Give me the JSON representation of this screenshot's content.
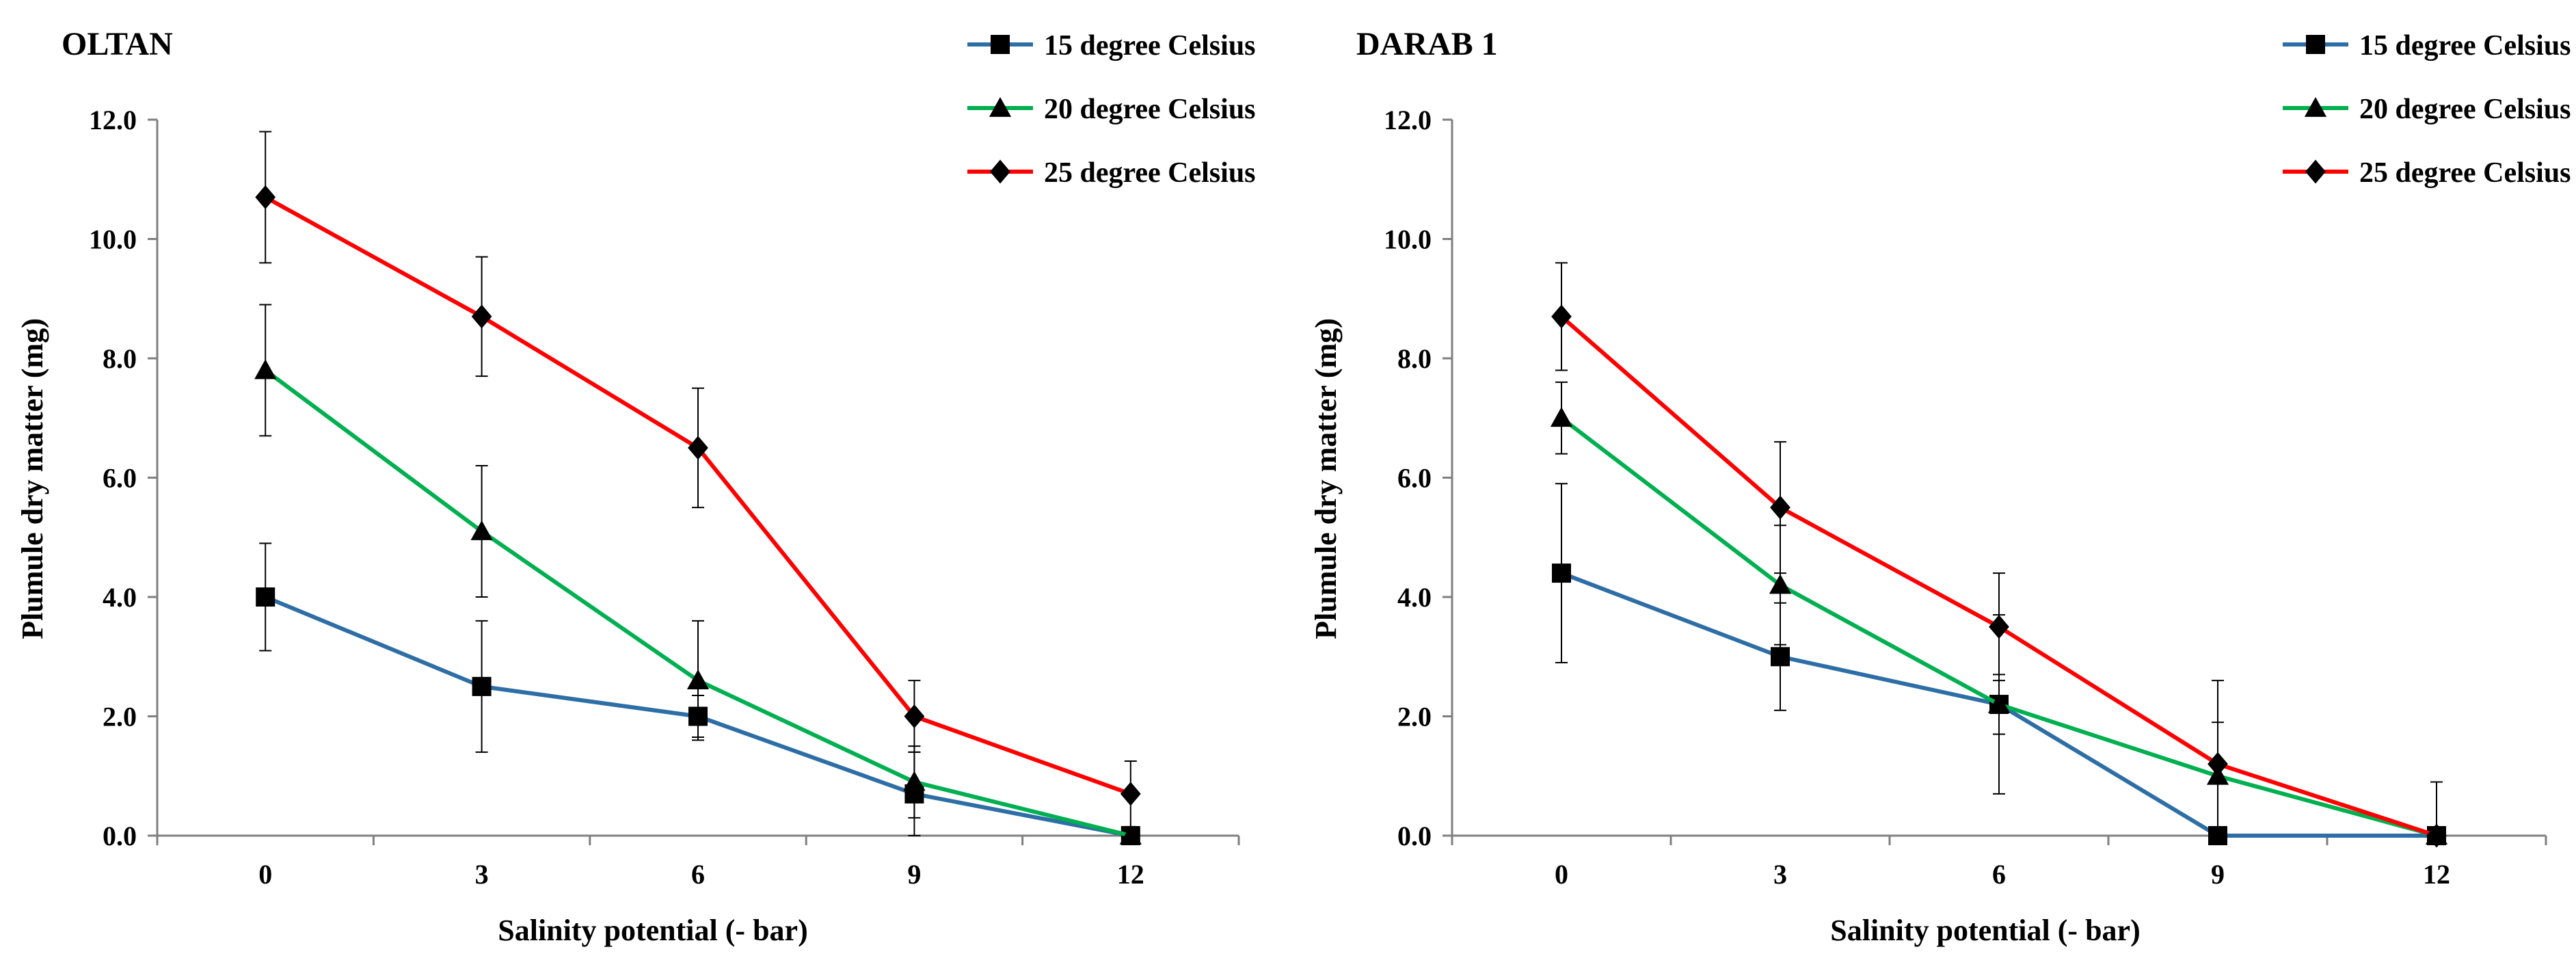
{
  "chart_data": [
    {
      "type": "line",
      "title": "OLTAN",
      "xlabel": "Salinity potential  (- bar)",
      "ylabel": "Plumule dry matter (mg)",
      "categories": [
        "0",
        "3",
        "6",
        "9",
        "12"
      ],
      "x": [
        0,
        3,
        6,
        9,
        12
      ],
      "yticks": [
        "0.0",
        "2.0",
        "4.0",
        "6.0",
        "8.0",
        "10.0",
        "12.0"
      ],
      "ylim": [
        0,
        12
      ],
      "legend_position": "top-right",
      "series": [
        {
          "name": "15 degree Celsius",
          "marker": "square",
          "color": "#2e6ea6",
          "values": [
            4.0,
            2.5,
            2.0,
            0.7,
            0.0
          ],
          "errors": [
            0.9,
            1.1,
            0.35,
            0.7,
            0.0
          ]
        },
        {
          "name": "20 degree Celsius",
          "marker": "triangle",
          "color": "#00b050",
          "values": [
            7.8,
            5.1,
            2.6,
            0.9,
            0.0
          ],
          "errors": [
            1.1,
            1.1,
            1.0,
            0.6,
            0.0
          ]
        },
        {
          "name": "25 degree Celsius",
          "marker": "diamond",
          "color": "#ff0000",
          "values": [
            10.7,
            8.7,
            6.5,
            2.0,
            0.7
          ],
          "errors": [
            1.1,
            1.0,
            1.0,
            0.6,
            0.55
          ]
        }
      ]
    },
    {
      "type": "line",
      "title": "DARAB 1",
      "xlabel": "Salinity potential  (- bar)",
      "ylabel": "Plumule dry matter (mg)",
      "categories": [
        "0",
        "3",
        "6",
        "9",
        "12"
      ],
      "x": [
        0,
        3,
        6,
        9,
        12
      ],
      "yticks": [
        "0.0",
        "2.0",
        "4.0",
        "6.0",
        "8.0",
        "10.0",
        "12.0"
      ],
      "ylim": [
        0,
        12
      ],
      "legend_position": "top-right",
      "series": [
        {
          "name": "15 degree Celsius",
          "marker": "square",
          "color": "#2e6ea6",
          "values": [
            4.4,
            3.0,
            2.2,
            0.0,
            0.0
          ],
          "errors": [
            1.5,
            0.9,
            0.5,
            0.0,
            0.0
          ]
        },
        {
          "name": "20 degree Celsius",
          "marker": "triangle",
          "color": "#00b050",
          "values": [
            7.0,
            4.2,
            2.2,
            1.0,
            0.0
          ],
          "errors": [
            0.6,
            1.0,
            1.5,
            0.9,
            0.0
          ]
        },
        {
          "name": "25 degree Celsius",
          "marker": "diamond",
          "color": "#ff0000",
          "values": [
            8.7,
            5.5,
            3.5,
            1.2,
            0.0
          ],
          "errors": [
            0.9,
            1.1,
            0.9,
            1.4,
            0.9
          ]
        }
      ]
    }
  ]
}
